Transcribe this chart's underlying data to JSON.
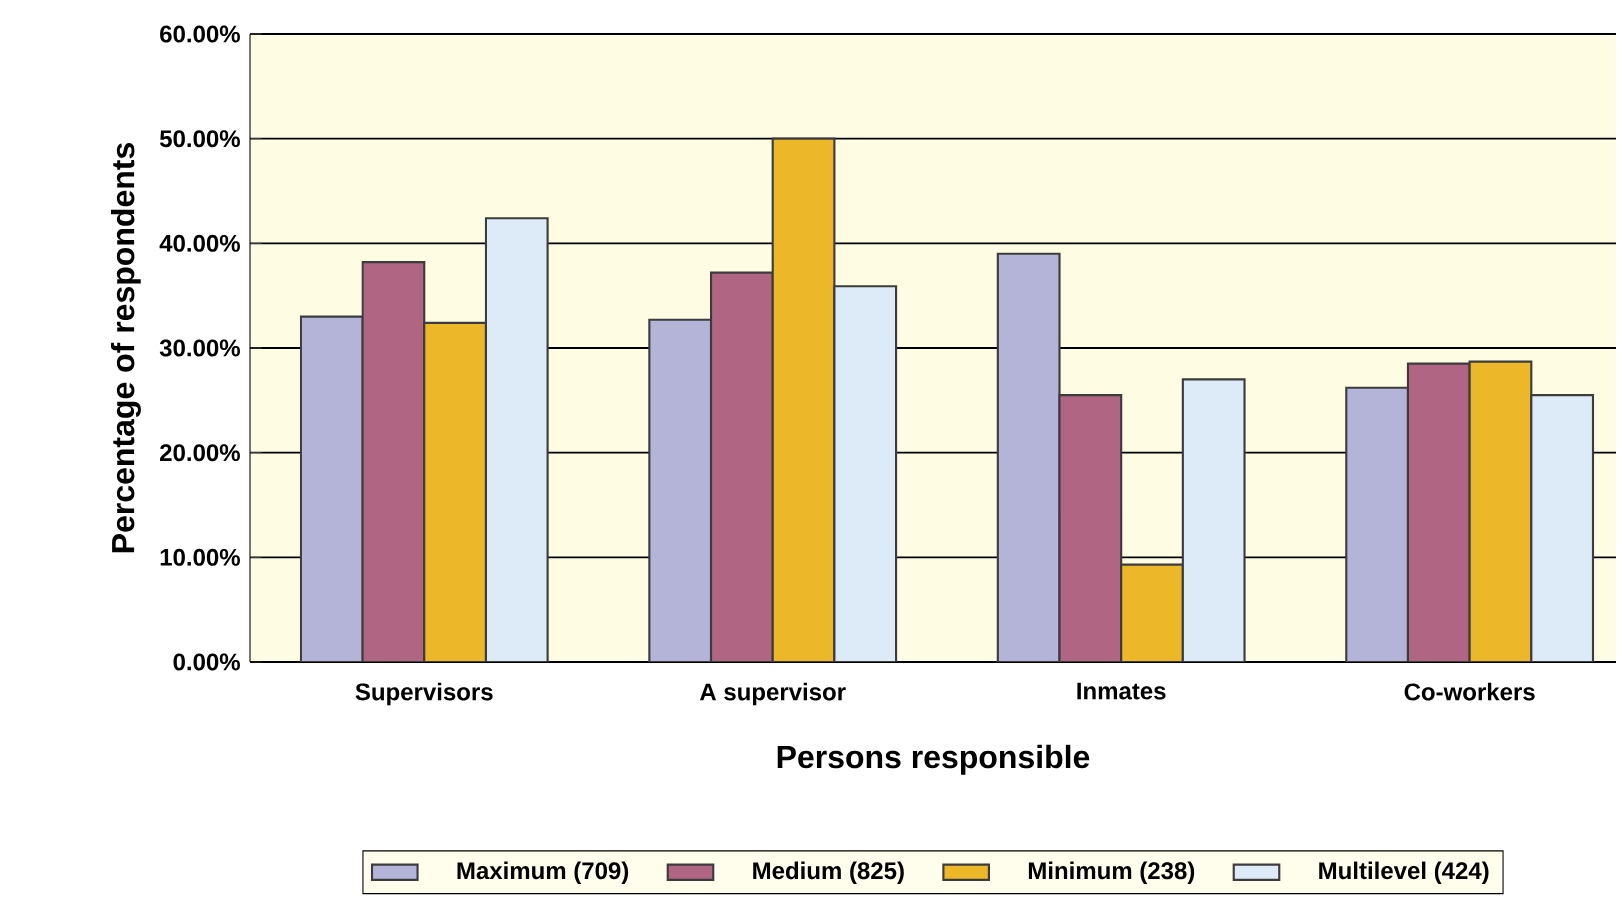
{
  "chart_data": {
    "type": "bar",
    "xlabel": "Persons responsible",
    "ylabel": "Percentage of respondents",
    "categories": [
      "Supervisors",
      "A supervisor",
      "Inmates",
      "Co-workers"
    ],
    "series": [
      {
        "name": "Maximum  (709)",
        "color": "#b4b4d8",
        "values": [
          33.0,
          32.7,
          39.0,
          26.2
        ]
      },
      {
        "name": "Medium  (825)",
        "color": "#b06682",
        "values": [
          38.2,
          37.2,
          25.5,
          28.5
        ]
      },
      {
        "name": "Minimum  (238)",
        "color": "#ecb82a",
        "values": [
          32.4,
          50.0,
          9.3,
          28.7
        ]
      },
      {
        "name": "Multilevel  (424)",
        "color": "#dcebf7",
        "values": [
          42.4,
          35.9,
          27.0,
          25.5
        ]
      }
    ],
    "ylim": [
      0,
      60
    ],
    "yticks": [
      {
        "value": 0,
        "label": "0.00%"
      },
      {
        "value": 10,
        "label": "10.00%"
      },
      {
        "value": 20,
        "label": "20.00%"
      },
      {
        "value": 30,
        "label": "30.00%"
      },
      {
        "value": 40,
        "label": "40.00%"
      },
      {
        "value": 50,
        "label": "50.00%"
      },
      {
        "value": 60,
        "label": "60.00%"
      }
    ],
    "grid": "y",
    "legend": "bottom"
  }
}
